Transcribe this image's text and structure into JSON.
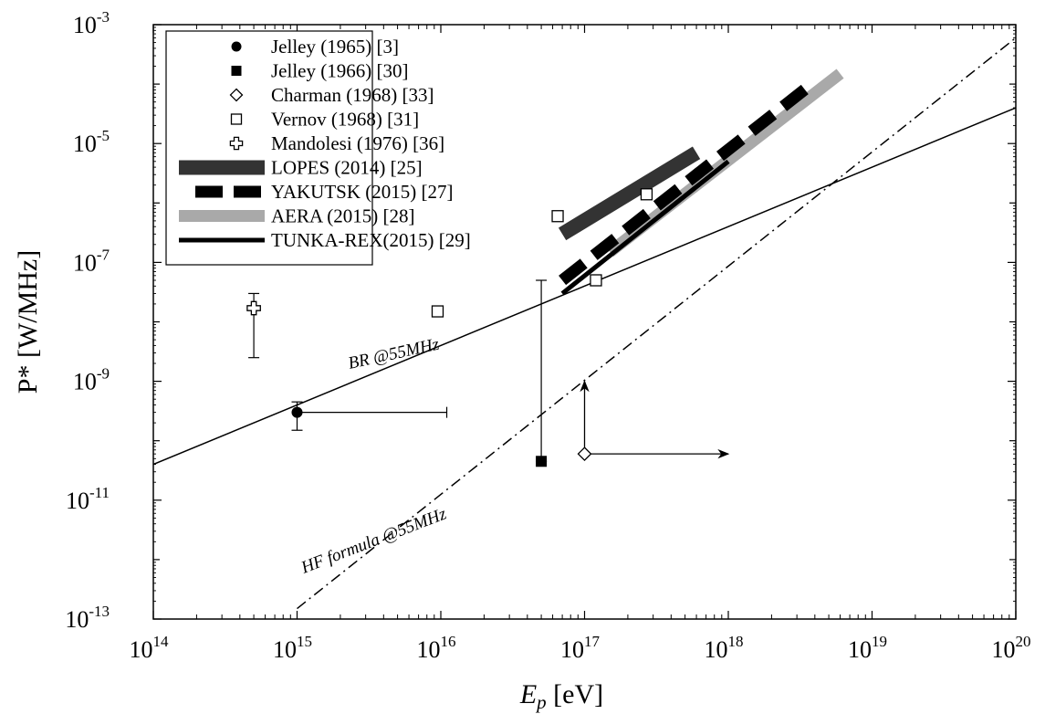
{
  "chart_data": {
    "type": "scatter",
    "x_scale": "log",
    "y_scale": "log",
    "xlim": [
      100000000000000.0,
      1e+20
    ],
    "ylim": [
      1e-13,
      0.001
    ],
    "grid": false,
    "legend_position": "top-left",
    "xlabel": {
      "main": "E",
      "sub": "p",
      "unit": " [eV]"
    },
    "ylabel": "P* [W/MHz]",
    "x_ticks": [
      {
        "base": "10",
        "exp": "14",
        "value": 100000000000000.0
      },
      {
        "base": "10",
        "exp": "15",
        "value": 1000000000000000.0
      },
      {
        "base": "10",
        "exp": "16",
        "value": 1e+16
      },
      {
        "base": "10",
        "exp": "17",
        "value": 1e+17
      },
      {
        "base": "10",
        "exp": "18",
        "value": 1e+18
      },
      {
        "base": "10",
        "exp": "19",
        "value": 1e+19
      },
      {
        "base": "10",
        "exp": "20",
        "value": 1e+20
      }
    ],
    "y_ticks": [
      {
        "base": "10",
        "exp": "-13",
        "value": 1e-13
      },
      {
        "base": "10",
        "exp": "-11",
        "value": 1e-11
      },
      {
        "base": "10",
        "exp": "-9",
        "value": 1e-09
      },
      {
        "base": "10",
        "exp": "-7",
        "value": 1e-07
      },
      {
        "base": "10",
        "exp": "-5",
        "value": 1e-05
      },
      {
        "base": "10",
        "exp": "-3",
        "value": 0.001
      }
    ],
    "series": [
      {
        "name": "Jelley (1965) [3]",
        "marker": "filled-circle",
        "points": [
          {
            "x": 1000000000000000.0,
            "y": 3e-10,
            "x_err": [
              1000000000000000.0,
              1.1e+16
            ],
            "y_err": [
              1.5e-10,
              4.5e-10
            ]
          }
        ]
      },
      {
        "name": "Jelley (1966) [30]",
        "marker": "filled-square",
        "points": [
          {
            "x": 5e+16,
            "y": 4.5e-11,
            "y_err": [
              4.5e-11,
              5e-08
            ]
          }
        ]
      },
      {
        "name": "Charman (1968) [33]",
        "marker": "open-diamond",
        "points": [
          {
            "x": 1e+17,
            "y": 6e-11,
            "lower_limit_arrows": {
              "x_to": 1e+18,
              "y_to": 1e-09
            }
          }
        ]
      },
      {
        "name": "Vernov (1968) [31]",
        "marker": "open-square",
        "points": [
          {
            "x": 9500000000000000.0,
            "y": 1.5e-08
          },
          {
            "x": 6.5e+16,
            "y": 6e-07
          },
          {
            "x": 1.2e+17,
            "y": 5e-08
          },
          {
            "x": 2.7e+17,
            "y": 1.4e-06
          }
        ]
      },
      {
        "name": "Mandolesi (1976) [36]",
        "marker": "open-cross",
        "points": [
          {
            "x": 500000000000000.0,
            "y": 1.7e-08,
            "y_err": [
              2.5e-09,
              3e-08
            ]
          }
        ]
      },
      {
        "name": "LOPES (2014) [25]",
        "style": "band",
        "color": "#333333",
        "range": {
          "x": [
            7e+16,
            6e+17
          ],
          "y": [
            3e-07,
            7e-06
          ]
        }
      },
      {
        "name": "YAKUTSK (2015) [27]",
        "style": "dashed-band",
        "color": "#000000",
        "range": {
          "x": [
            7e+16,
            3.8e+18
          ],
          "y": [
            5e-08,
            0.0001
          ]
        }
      },
      {
        "name": "AERA (2015) [28]",
        "style": "band",
        "color": "#a9a9a9",
        "range": {
          "x": [
            1.5e+17,
            6e+18
          ],
          "y": [
            1.5e-07,
            0.00015
          ]
        }
      },
      {
        "name": "TUNKA-REX(2015) [29]",
        "style": "line",
        "color": "#000000",
        "range": {
          "x": [
            7e+16,
            1e+18
          ],
          "y": [
            3e-08,
            5e-06
          ]
        }
      }
    ],
    "reference_lines": [
      {
        "name": "BR @55MHz",
        "style": "solid",
        "x": [
          100000000000000.0,
          1e+20
        ],
        "y": [
          4e-11,
          4e-05
        ]
      },
      {
        "name": "HF formula @55MHz",
        "style": "dash-dot",
        "x": [
          1000000000000000.0,
          1e+20
        ],
        "y": [
          1.5e-13,
          0.0006
        ]
      }
    ]
  }
}
